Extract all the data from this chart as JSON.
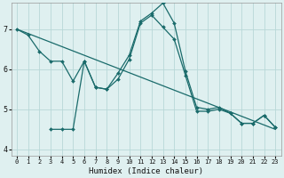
{
  "xlabel": "Humidex (Indice chaleur)",
  "bg_color": "#dff0f0",
  "grid_color": "#b8d8d8",
  "line_color": "#1a6b6b",
  "xlim": [
    -0.5,
    23.5
  ],
  "ylim": [
    3.85,
    7.65
  ],
  "yticks": [
    4,
    5,
    6,
    7
  ],
  "xticks": [
    0,
    1,
    2,
    3,
    4,
    5,
    6,
    7,
    8,
    9,
    10,
    11,
    12,
    13,
    14,
    15,
    16,
    17,
    18,
    19,
    20,
    21,
    22,
    23
  ],
  "series1_x": [
    0,
    23
  ],
  "series1_y": [
    7.0,
    4.5
  ],
  "series2_x": [
    0,
    1,
    2,
    3,
    4,
    5,
    6,
    7,
    8,
    9,
    10,
    11,
    12,
    13,
    14,
    15,
    16,
    17,
    18,
    19,
    20,
    21,
    22,
    23
  ],
  "series2_y": [
    7.0,
    6.85,
    6.45,
    6.2,
    6.2,
    5.7,
    6.2,
    5.55,
    5.5,
    5.9,
    6.35,
    7.2,
    7.4,
    7.65,
    7.15,
    5.95,
    5.05,
    5.0,
    5.05,
    4.9,
    4.65,
    4.65,
    4.85,
    4.55
  ],
  "series3_x": [
    3,
    4,
    5,
    6,
    7,
    8,
    9,
    10,
    11,
    12,
    13,
    14,
    15,
    16,
    17,
    18,
    19,
    20,
    21,
    22,
    23
  ],
  "series3_y": [
    4.5,
    4.5,
    4.5,
    6.2,
    5.55,
    5.5,
    5.75,
    6.25,
    7.15,
    7.35,
    7.05,
    6.75,
    5.85,
    4.95,
    4.95,
    5.0,
    4.9,
    4.65,
    4.65,
    4.85,
    4.55
  ],
  "marker_size": 2.0,
  "linewidth": 0.9,
  "xlabel_fontsize": 6.5,
  "tick_fontsize_x": 5.0,
  "tick_fontsize_y": 6.0
}
